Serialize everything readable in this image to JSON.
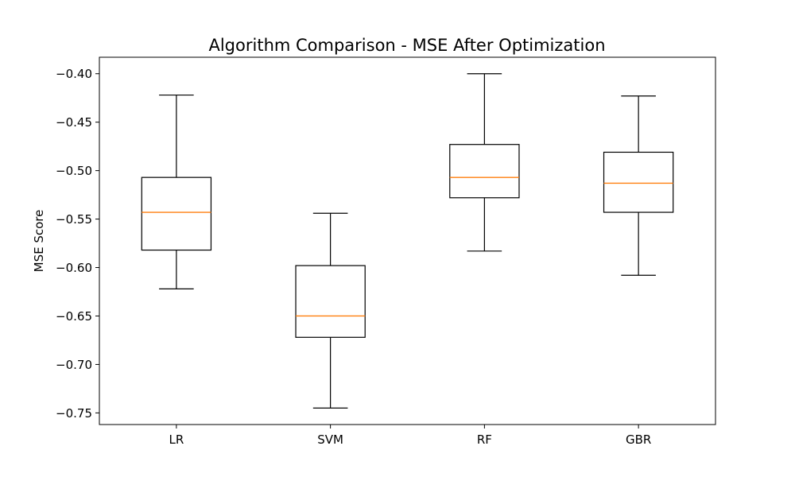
{
  "chart_data": {
    "type": "box",
    "title": "Algorithm Comparison - MSE After Optimization",
    "xlabel": "",
    "ylabel": "MSE Score",
    "ylim": [
      -0.762,
      -0.383
    ],
    "yticks": [
      -0.4,
      -0.45,
      -0.5,
      -0.55,
      -0.6,
      -0.65,
      -0.7,
      -0.75
    ],
    "ytick_labels": [
      "−0.40",
      "−0.45",
      "−0.50",
      "−0.55",
      "−0.60",
      "−0.65",
      "−0.70",
      "−0.75"
    ],
    "categories": [
      "LR",
      "SVM",
      "RF",
      "GBR"
    ],
    "boxes": [
      {
        "label": "LR",
        "whisker_low": -0.622,
        "q1": -0.582,
        "median": -0.543,
        "q3": -0.507,
        "whisker_high": -0.422
      },
      {
        "label": "SVM",
        "whisker_low": -0.745,
        "q1": -0.672,
        "median": -0.65,
        "q3": -0.598,
        "whisker_high": -0.544
      },
      {
        "label": "RF",
        "whisker_low": -0.583,
        "q1": -0.528,
        "median": -0.507,
        "q3": -0.473,
        "whisker_high": -0.4
      },
      {
        "label": "GBR",
        "whisker_low": -0.608,
        "q1": -0.543,
        "median": -0.513,
        "q3": -0.481,
        "whisker_high": -0.423
      }
    ],
    "grid": false,
    "colors": {
      "box": "#000000",
      "median": "#ff7f0e",
      "axes": "#000000",
      "background": "#ffffff"
    }
  }
}
